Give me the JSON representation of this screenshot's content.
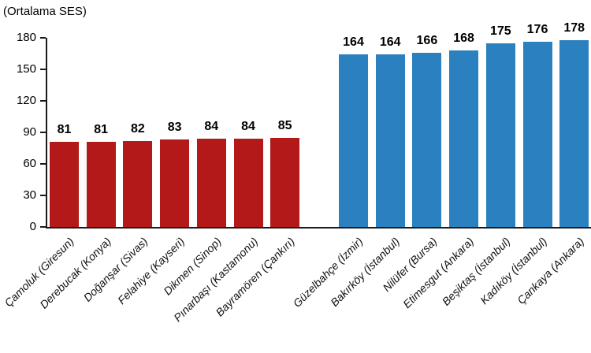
{
  "chart_data": {
    "type": "bar",
    "title": "(Ortalama SES)",
    "ylabel": "(Ortalama SES)",
    "xlabel": "",
    "ylim": [
      0,
      180
    ],
    "yticks": [
      0,
      30,
      60,
      90,
      120,
      150,
      180
    ],
    "grid": false,
    "legend": "none",
    "value_labels": true,
    "categories": [
      "Çamoluk (Giresun)",
      "Derebucak (Konya)",
      "Doğanşar (Sivas)",
      "Felahiye (Kayseri)",
      "Dikmen (Sinop)",
      "Pınarbaşı (Kastamonu)",
      "Bayramören (Çankırı)",
      "Güzelbahçe (İzmir)",
      "Bakırköy (İstanbul)",
      "Nilüfer (Bursa)",
      "Etimesgut (Ankara)",
      "Beşiktaş (İstanbul)",
      "Kadıköy (İstanbul)",
      "Çankaya (Ankara)"
    ],
    "values": [
      81,
      81,
      82,
      83,
      84,
      84,
      85,
      164,
      164,
      166,
      168,
      175,
      176,
      178
    ],
    "groups": [
      {
        "name": "lowest-ses-districts",
        "color": "#B21918",
        "items": [
          {
            "label": "Çamoluk (Giresun)",
            "value": 81
          },
          {
            "label": "Derebucak (Konya)",
            "value": 81
          },
          {
            "label": "Doğanşar (Sivas)",
            "value": 82
          },
          {
            "label": "Felahiye (Kayseri)",
            "value": 83
          },
          {
            "label": "Dikmen (Sinop)",
            "value": 84
          },
          {
            "label": "Pınarbaşı (Kastamonu)",
            "value": 84
          },
          {
            "label": "Bayramören (Çankırı)",
            "value": 85
          }
        ]
      },
      {
        "name": "highest-ses-districts",
        "color": "#2B80C0",
        "items": [
          {
            "label": "Güzelbahçe (İzmir)",
            "value": 164
          },
          {
            "label": "Bakırköy (İstanbul)",
            "value": 164
          },
          {
            "label": "Nilüfer (Bursa)",
            "value": 166
          },
          {
            "label": "Etimesgut (Ankara)",
            "value": 168
          },
          {
            "label": "Beşiktaş (İstanbul)",
            "value": 175
          },
          {
            "label": "Kadıköy (İstanbul)",
            "value": 176
          },
          {
            "label": "Çankaya (Ankara)",
            "value": 178
          }
        ]
      }
    ]
  }
}
